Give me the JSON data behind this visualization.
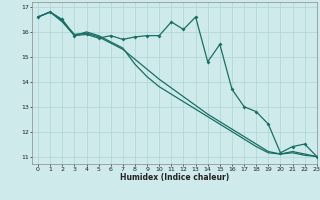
{
  "xlabel": "Humidex (Indice chaleur)",
  "bg_color": "#ceeaea",
  "grid_color": "#aed4d4",
  "line_color": "#1a6e64",
  "xlim": [
    -0.5,
    23
  ],
  "ylim": [
    10.7,
    17.2
  ],
  "xticks": [
    0,
    1,
    2,
    3,
    4,
    5,
    6,
    7,
    8,
    9,
    10,
    11,
    12,
    13,
    14,
    15,
    16,
    17,
    18,
    19,
    20,
    21,
    22,
    23
  ],
  "yticks": [
    11,
    12,
    13,
    14,
    15,
    16,
    17
  ],
  "line1_x": [
    0,
    1,
    2,
    3,
    4,
    5,
    6,
    7,
    8,
    9,
    10,
    11,
    12,
    13,
    14,
    15,
    16,
    17,
    18,
    19,
    20,
    21,
    22,
    23
  ],
  "line1_y": [
    16.6,
    16.8,
    16.4,
    15.85,
    16.0,
    15.85,
    15.6,
    15.35,
    14.7,
    14.2,
    13.8,
    13.5,
    13.2,
    12.9,
    12.6,
    12.3,
    12.0,
    11.7,
    11.4,
    11.15,
    11.1,
    11.15,
    11.05,
    11.0
  ],
  "line2_x": [
    0,
    1,
    2,
    3,
    4,
    5,
    6,
    7,
    8,
    9,
    10,
    11,
    12,
    13,
    14,
    15,
    16,
    17,
    18,
    19,
    20,
    21,
    22,
    23
  ],
  "line2_y": [
    16.6,
    16.8,
    16.45,
    15.9,
    15.95,
    15.8,
    15.55,
    15.3,
    14.9,
    14.5,
    14.1,
    13.75,
    13.4,
    13.05,
    12.7,
    12.4,
    12.1,
    11.8,
    11.5,
    11.2,
    11.1,
    11.2,
    11.1,
    11.0
  ],
  "line3_x": [
    0,
    1,
    2,
    3,
    4,
    5,
    6,
    7,
    8,
    9,
    10,
    11,
    12,
    13,
    14,
    15,
    16,
    17,
    18,
    19,
    20,
    21,
    22,
    23
  ],
  "line3_y": [
    16.6,
    16.8,
    16.5,
    15.85,
    15.9,
    15.75,
    15.85,
    15.7,
    15.8,
    15.85,
    15.85,
    16.4,
    16.1,
    16.6,
    14.8,
    15.5,
    13.7,
    13.0,
    12.8,
    12.3,
    11.15,
    11.4,
    11.5,
    11.0
  ]
}
